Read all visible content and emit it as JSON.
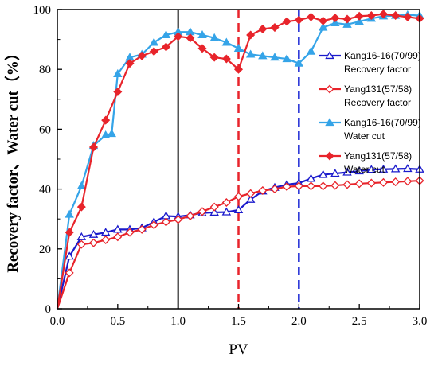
{
  "chart_data": {
    "type": "line",
    "xlabel": "PV",
    "ylabel": "Recovery factor、Water cut（%）",
    "xlim": [
      0.0,
      3.0
    ],
    "ylim": [
      0,
      100
    ],
    "xticks": [
      "0.0",
      "0.5",
      "1.0",
      "1.5",
      "2.0",
      "2.5",
      "3.0"
    ],
    "yticks": [
      "0",
      "20",
      "40",
      "60",
      "80",
      "100"
    ],
    "grid": false,
    "legend_position": "right",
    "reference_lines": [
      {
        "x": 1.0,
        "color": "#000000",
        "style": "solid"
      },
      {
        "x": 1.5,
        "color": "#e8242b",
        "style": "dashed"
      },
      {
        "x": 2.0,
        "color": "#1f2bd6",
        "style": "dashed"
      }
    ],
    "series": [
      {
        "name": "Kang16-16(70/99) Recovery factor",
        "legend_lines": [
          "Kang16-16(70/99)",
          "Recovery factor"
        ],
        "color": "#1a1acc",
        "marker": "triangle-open",
        "x": [
          0.0,
          0.1,
          0.2,
          0.3,
          0.4,
          0.5,
          0.6,
          0.7,
          0.8,
          0.9,
          1.0,
          1.1,
          1.2,
          1.3,
          1.4,
          1.5,
          1.6,
          1.7,
          1.8,
          1.9,
          2.0,
          2.1,
          2.2,
          2.3,
          2.4,
          2.5,
          2.6,
          2.7,
          2.8,
          2.9,
          3.0
        ],
        "y": [
          0,
          17.5,
          24.0,
          24.8,
          25.5,
          26.5,
          26.5,
          27.0,
          29.0,
          31.0,
          30.8,
          31.3,
          32.0,
          32.2,
          32.3,
          33.0,
          36.5,
          39.3,
          40.5,
          41.5,
          42.0,
          43.5,
          44.8,
          45.2,
          45.6,
          46.0,
          46.5,
          46.6,
          46.7,
          46.8,
          46.6
        ]
      },
      {
        "name": "Yang131(57/58) Recovery factor",
        "legend_lines": [
          "Yang131(57/58)",
          "Recovery factor"
        ],
        "color": "#e8242b",
        "marker": "diamond-open",
        "x": [
          0.0,
          0.1,
          0.2,
          0.3,
          0.4,
          0.5,
          0.6,
          0.7,
          0.8,
          0.9,
          1.0,
          1.1,
          1.2,
          1.3,
          1.4,
          1.5,
          1.6,
          1.7,
          1.8,
          1.9,
          2.0,
          2.1,
          2.2,
          2.3,
          2.4,
          2.5,
          2.6,
          2.7,
          2.8,
          2.9,
          3.0
        ],
        "y": [
          0,
          12.0,
          21.5,
          22.0,
          23.0,
          24.0,
          25.5,
          26.5,
          28.0,
          29.0,
          29.8,
          31.0,
          32.5,
          34.0,
          35.5,
          37.5,
          38.5,
          39.5,
          40.0,
          40.8,
          41.0,
          41.0,
          41.0,
          41.2,
          41.5,
          41.8,
          42.0,
          42.2,
          42.4,
          42.6,
          42.8
        ]
      },
      {
        "name": "Kang16-16(70/99) Water cut",
        "legend_lines": [
          "Kang16-16(70/99)",
          "Water cut"
        ],
        "color": "#35a4e8",
        "marker": "triangle-filled",
        "x": [
          0.0,
          0.1,
          0.2,
          0.3,
          0.4,
          0.45,
          0.5,
          0.6,
          0.7,
          0.8,
          0.9,
          1.0,
          1.1,
          1.2,
          1.3,
          1.4,
          1.5,
          1.6,
          1.7,
          1.8,
          1.9,
          2.0,
          2.1,
          2.2,
          2.3,
          2.4,
          2.5,
          2.6,
          2.7,
          2.8,
          2.9,
          3.0
        ],
        "y": [
          0,
          31.5,
          41.0,
          54.5,
          58.0,
          58.5,
          78.5,
          84.0,
          85.0,
          89.0,
          91.5,
          92.5,
          92.5,
          91.5,
          90.5,
          89.0,
          87.0,
          85.0,
          84.5,
          84.0,
          83.5,
          82.0,
          86.0,
          94.0,
          95.5,
          95.0,
          96.0,
          97.0,
          97.8,
          98.0,
          98.2,
          98.0
        ]
      },
      {
        "name": "Yang131(57/58) Water cut",
        "legend_lines": [
          "Yang131(57/58)",
          "Water cut"
        ],
        "color": "#e8242b",
        "marker": "diamond-filled",
        "x": [
          0.0,
          0.1,
          0.2,
          0.3,
          0.4,
          0.5,
          0.6,
          0.7,
          0.8,
          0.9,
          1.0,
          1.1,
          1.2,
          1.3,
          1.4,
          1.5,
          1.6,
          1.7,
          1.8,
          1.9,
          2.0,
          2.1,
          2.2,
          2.3,
          2.4,
          2.5,
          2.6,
          2.7,
          2.8,
          2.9,
          3.0
        ],
        "y": [
          0,
          25.5,
          34.0,
          54.0,
          63.0,
          72.5,
          82.0,
          84.5,
          86.0,
          87.5,
          91.0,
          90.5,
          87.0,
          84.0,
          83.5,
          80.0,
          91.5,
          93.5,
          94.0,
          96.0,
          96.5,
          97.5,
          96.2,
          97.2,
          96.8,
          97.8,
          98.0,
          98.5,
          98.0,
          97.5,
          97.0
        ]
      }
    ]
  }
}
